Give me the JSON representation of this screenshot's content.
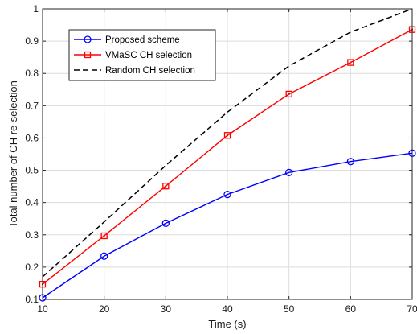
{
  "chart_data": {
    "type": "line",
    "title": "",
    "xlabel": "Time (s)",
    "ylabel": "Total number of CH re-selection",
    "x": [
      10,
      20,
      30,
      40,
      50,
      60,
      70
    ],
    "xlim": [
      10,
      70
    ],
    "ylim": [
      0.1,
      1
    ],
    "xticks": [
      10,
      20,
      30,
      40,
      50,
      60,
      70
    ],
    "yticks": [
      0.1,
      0.2,
      0.3,
      0.4,
      0.5,
      0.6,
      0.7,
      0.8,
      0.9,
      1
    ],
    "grid": true,
    "legend_position": "top-left",
    "series": [
      {
        "name": "Proposed scheme",
        "color": "#0000ff",
        "marker": "circle",
        "line_style": "solid",
        "values": [
          0.105,
          0.234,
          0.336,
          0.425,
          0.493,
          0.527,
          0.553
        ]
      },
      {
        "name": "VMaSC CH selection",
        "color": "#ff0000",
        "marker": "square",
        "line_style": "solid",
        "values": [
          0.147,
          0.297,
          0.451,
          0.608,
          0.736,
          0.834,
          0.936
        ]
      },
      {
        "name": "Random CH selection",
        "color": "#000000",
        "marker": "none",
        "line_style": "dashed",
        "values": [
          0.17,
          0.34,
          0.515,
          0.68,
          0.823,
          0.928,
          1.0
        ]
      }
    ]
  }
}
